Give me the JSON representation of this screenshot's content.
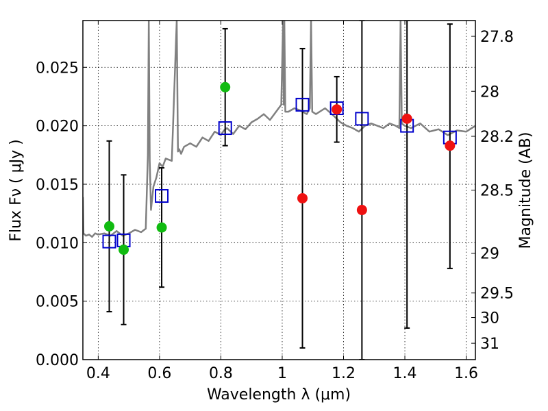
{
  "chart_data": {
    "type": "scatter",
    "xlabel": "Wavelength  λ (μm)",
    "ylabel": "Flux  Fν  ( μJy )",
    "y2label": "Magnitude (AB)",
    "xlim": [
      0.35,
      1.63
    ],
    "ylim": [
      0.0,
      0.029
    ],
    "grid": true,
    "x_ticks": [
      0.4,
      0.6,
      0.8,
      1.0,
      1.2,
      1.4,
      1.6
    ],
    "x_tick_labels": [
      "0.4",
      "0.6",
      "0.8",
      "1",
      "1.2",
      "1.4",
      "1.6"
    ],
    "y_ticks": [
      0.0,
      0.005,
      0.01,
      0.015,
      0.02,
      0.025
    ],
    "y_tick_labels": [
      "0.000",
      "0.005",
      "0.010",
      "0.015",
      "0.020",
      "0.025"
    ],
    "y2_ticks": [
      {
        "flux": 0.02765,
        "label": "27.8"
      },
      {
        "flux": 0.02295,
        "label": "28"
      },
      {
        "flux": 0.0191,
        "label": "28.2"
      },
      {
        "flux": 0.0145,
        "label": "28.5"
      },
      {
        "flux": 0.0091,
        "label": "29"
      },
      {
        "flux": 0.0057,
        "label": "29.5"
      },
      {
        "flux": 0.0036,
        "label": "30"
      },
      {
        "flux": 0.0014,
        "label": "31"
      }
    ],
    "colors": {
      "spectrum": "#808080",
      "green_points": "#11bb11",
      "red_points": "#ee1111",
      "model_squares": "#0000cc",
      "errorbars": "#000000"
    },
    "spectrum": {
      "x": [
        0.35,
        0.352,
        0.36,
        0.37,
        0.38,
        0.39,
        0.4,
        0.42,
        0.44,
        0.46,
        0.48,
        0.5,
        0.52,
        0.54,
        0.555,
        0.562,
        0.565,
        0.568,
        0.572,
        0.58,
        0.59,
        0.6,
        0.61,
        0.62,
        0.64,
        0.656,
        0.66,
        0.664,
        0.67,
        0.68,
        0.7,
        0.72,
        0.74,
        0.76,
        0.78,
        0.8,
        0.81,
        0.82,
        0.84,
        0.86,
        0.88,
        0.9,
        0.92,
        0.94,
        0.96,
        0.98,
        0.997,
        1.003,
        1.005,
        1.007,
        1.01,
        1.02,
        1.04,
        1.06,
        1.08,
        1.09,
        1.094,
        1.098,
        1.11,
        1.14,
        1.17,
        1.19,
        1.21,
        1.23,
        1.25,
        1.27,
        1.29,
        1.31,
        1.33,
        1.35,
        1.37,
        1.382,
        1.386,
        1.39,
        1.4,
        1.42,
        1.45,
        1.48,
        1.51,
        1.54,
        1.57,
        1.6,
        1.63
      ],
      "y": [
        0.0139,
        0.0108,
        0.0106,
        0.0107,
        0.0105,
        0.0108,
        0.0107,
        0.0108,
        0.0106,
        0.011,
        0.0106,
        0.0108,
        0.0111,
        0.0109,
        0.0112,
        0.0175,
        0.029,
        0.017,
        0.0128,
        0.0148,
        0.0156,
        0.0168,
        0.0165,
        0.0172,
        0.017,
        0.029,
        0.0178,
        0.018,
        0.0176,
        0.0182,
        0.0185,
        0.0182,
        0.019,
        0.0187,
        0.0195,
        0.0192,
        0.0196,
        0.0198,
        0.0193,
        0.02,
        0.0197,
        0.0203,
        0.0206,
        0.021,
        0.0205,
        0.0212,
        0.0218,
        0.029,
        0.0218,
        0.029,
        0.0212,
        0.0212,
        0.0215,
        0.0213,
        0.021,
        0.0215,
        0.029,
        0.0212,
        0.021,
        0.0215,
        0.0208,
        0.0203,
        0.02,
        0.0198,
        0.0195,
        0.02,
        0.0202,
        0.02,
        0.0198,
        0.0202,
        0.02,
        0.0198,
        0.029,
        0.0202,
        0.02,
        0.0198,
        0.0202,
        0.0195,
        0.0197,
        0.0192,
        0.0196,
        0.0195,
        0.02
      ]
    },
    "errorbars": [
      {
        "x": 0.436,
        "low": 0.0041,
        "high": 0.0187
      },
      {
        "x": 0.483,
        "low": 0.003,
        "high": 0.0158
      },
      {
        "x": 0.607,
        "low": 0.0062,
        "high": 0.0164
      },
      {
        "x": 0.814,
        "low": 0.0183,
        "high": 0.0283
      },
      {
        "x": 1.066,
        "low": 0.001,
        "high": 0.0266
      },
      {
        "x": 1.178,
        "low": 0.0186,
        "high": 0.0242
      },
      {
        "x": 1.26,
        "low": 0.0,
        "high": 0.029
      },
      {
        "x": 1.407,
        "low": 0.0027,
        "high": 0.029
      },
      {
        "x": 1.547,
        "low": 0.0078,
        "high": 0.0287
      }
    ],
    "green_points": [
      {
        "x": 0.436,
        "y": 0.0114
      },
      {
        "x": 0.483,
        "y": 0.0094
      },
      {
        "x": 0.607,
        "y": 0.0113
      },
      {
        "x": 0.814,
        "y": 0.0233
      }
    ],
    "red_points": [
      {
        "x": 1.066,
        "y": 0.0138
      },
      {
        "x": 1.178,
        "y": 0.0214
      },
      {
        "x": 1.26,
        "y": 0.0128
      },
      {
        "x": 1.407,
        "y": 0.0206
      },
      {
        "x": 1.547,
        "y": 0.0183
      }
    ],
    "model_squares": [
      {
        "x": 0.436,
        "y": 0.0101
      },
      {
        "x": 0.483,
        "y": 0.0102
      },
      {
        "x": 0.607,
        "y": 0.014
      },
      {
        "x": 0.814,
        "y": 0.0198
      },
      {
        "x": 1.066,
        "y": 0.0218
      },
      {
        "x": 1.178,
        "y": 0.0215
      },
      {
        "x": 1.26,
        "y": 0.0206
      },
      {
        "x": 1.407,
        "y": 0.02
      },
      {
        "x": 1.547,
        "y": 0.019
      }
    ]
  }
}
